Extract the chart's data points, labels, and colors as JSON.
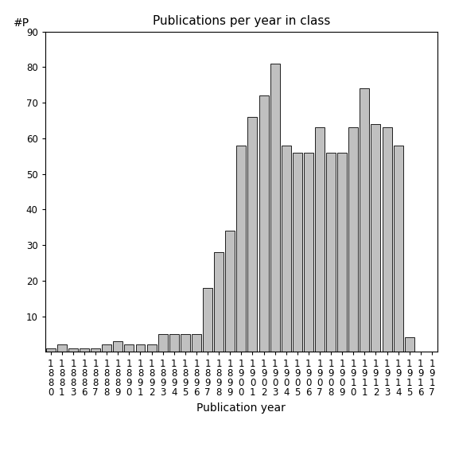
{
  "title": "Publications per year in class",
  "xlabel": "Publication year",
  "ylabel": "#P",
  "years": [
    "1880",
    "1881",
    "1883",
    "1886",
    "1887",
    "1888",
    "1889",
    "1890",
    "1891",
    "1892",
    "1893",
    "1894",
    "1895",
    "1896",
    "1897",
    "1898",
    "1899",
    "1900",
    "1901",
    "1902",
    "1903",
    "1904",
    "1905",
    "1906",
    "1907",
    "1908",
    "1909",
    "1910",
    "1911",
    "1912",
    "1913",
    "1914",
    "1915",
    "1916",
    "1917"
  ],
  "values": [
    1,
    2,
    1,
    1,
    1,
    2,
    3,
    2,
    2,
    2,
    5,
    5,
    5,
    5,
    18,
    28,
    34,
    58,
    66,
    72,
    81,
    58,
    56,
    56,
    63,
    56,
    56,
    63,
    74,
    64,
    63,
    58,
    4,
    0,
    0
  ],
  "bar_color": "#c0c0c0",
  "bar_edgecolor": "#000000",
  "ylim": [
    0,
    90
  ],
  "yticks": [
    10,
    20,
    30,
    40,
    50,
    60,
    70,
    80,
    90
  ],
  "background_color": "#ffffff",
  "title_fontsize": 11,
  "label_fontsize": 10,
  "tick_fontsize": 8.5
}
